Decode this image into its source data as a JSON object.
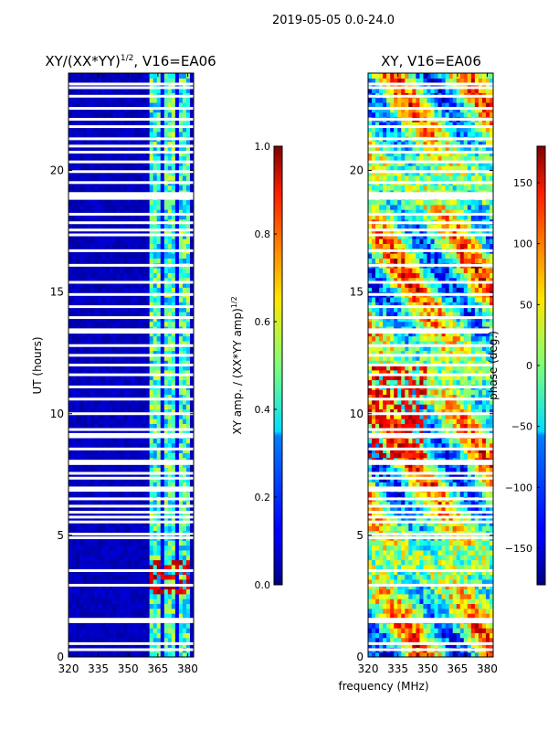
{
  "suptitle": "2019-05-05 0.0-24.0",
  "chart_data": [
    {
      "type": "heatmap",
      "title": "XY/(XX*YY)",
      "title_exponent": "1/2",
      "title_suffix": ", V16=EA06",
      "xlabel": "",
      "ylabel": "UT (hours)",
      "xlim": [
        320,
        383
      ],
      "ylim": [
        0,
        24
      ],
      "xticks": [
        320,
        335,
        350,
        365,
        380
      ],
      "yticks": [
        0,
        5,
        10,
        15,
        20
      ],
      "colorbar": {
        "label": "XY amp. / (XX*YY amp)",
        "label_exponent": "1/2",
        "range": [
          0.0,
          1.0
        ],
        "ticks": [
          "0.0",
          "0.2",
          "0.4",
          "0.6",
          "0.8",
          "1.0"
        ],
        "tick_values": [
          0.0,
          0.2,
          0.4,
          0.6,
          0.8,
          1.0
        ]
      }
    },
    {
      "type": "heatmap",
      "title": "XY, V16=EA06",
      "xlabel": "frequency (MHz)",
      "ylabel": "",
      "xlim": [
        320,
        383
      ],
      "ylim": [
        0,
        24
      ],
      "xticks": [
        320,
        335,
        350,
        365,
        380
      ],
      "yticks": [
        0,
        5,
        10,
        15,
        20
      ],
      "colorbar": {
        "label": "phase (deg.)",
        "range": [
          -180,
          180
        ],
        "ticks": [
          "−150",
          "−100",
          "−50",
          "0",
          "50",
          "100",
          "150"
        ],
        "tick_values": [
          -150,
          -100,
          -50,
          0,
          50,
          100,
          150
        ]
      }
    }
  ],
  "flagged_hours": [
    0.3,
    0.55,
    1.45,
    1.55,
    2.95,
    3.55,
    4.9,
    5.05,
    5.55,
    5.75,
    5.95,
    6.2,
    6.5,
    6.85,
    6.95,
    7.35,
    7.55,
    7.95,
    8.05,
    8.55,
    9.05,
    9.15,
    9.35,
    10.0,
    10.6,
    11.1,
    11.6,
    12.0,
    12.4,
    12.8,
    13.35,
    13.45,
    13.95,
    14.4,
    14.9,
    15.4,
    16.1,
    16.7,
    17.35,
    17.55,
    17.85,
    18.2,
    18.85,
    18.95,
    19.05,
    19.5,
    19.95,
    20.35,
    20.75,
    21.0,
    21.3,
    21.8,
    22.1,
    22.55,
    23.05,
    23.4,
    23.55
  ]
}
